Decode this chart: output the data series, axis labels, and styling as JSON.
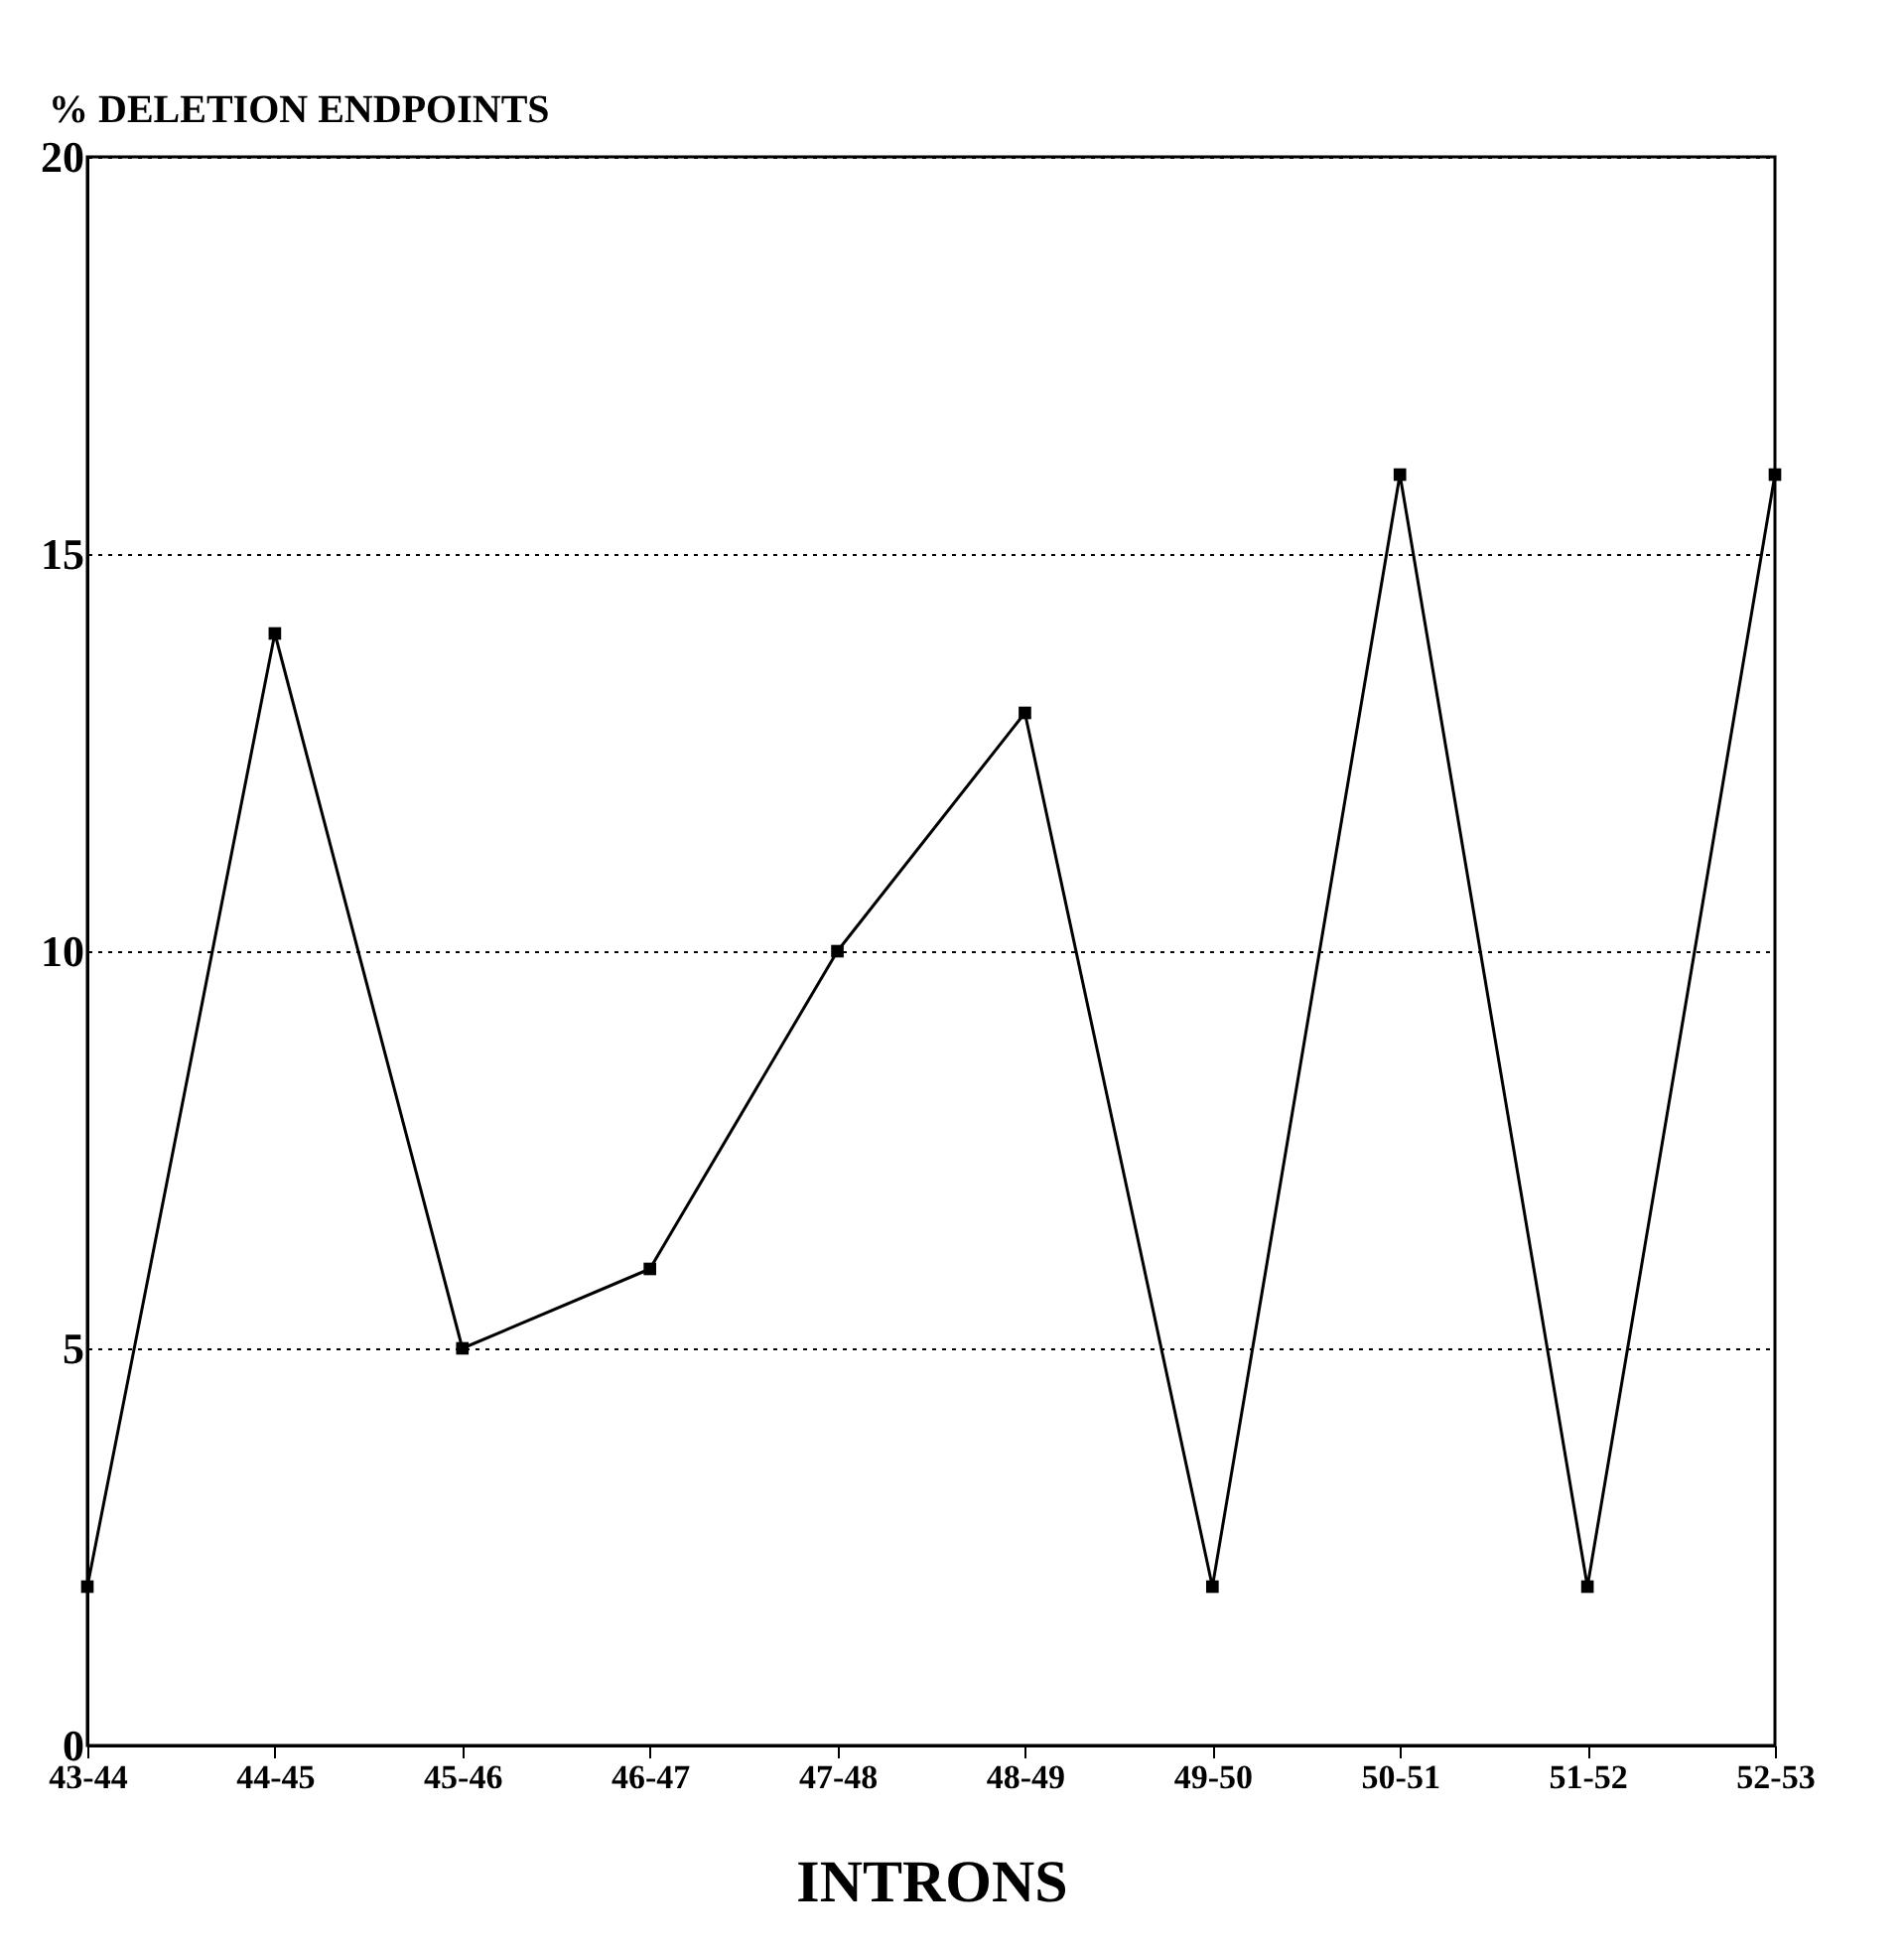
{
  "chart_data": {
    "type": "line",
    "ylabel": "% DELETION ENDPOINTS",
    "xlabel": "INTRONS",
    "categories": [
      "43-44",
      "44-45",
      "45-46",
      "46-47",
      "47-48",
      "48-49",
      "49-50",
      "50-51",
      "51-52",
      "52-53"
    ],
    "series": [
      {
        "color": "#000000",
        "values": [
          2,
          14,
          5,
          6,
          10,
          13,
          2,
          16,
          2,
          16
        ]
      }
    ],
    "ylim": [
      0,
      20
    ],
    "yticks": [
      0,
      5,
      10,
      15,
      20
    ],
    "grid": "y",
    "marker": "square",
    "line_style": "solid"
  }
}
